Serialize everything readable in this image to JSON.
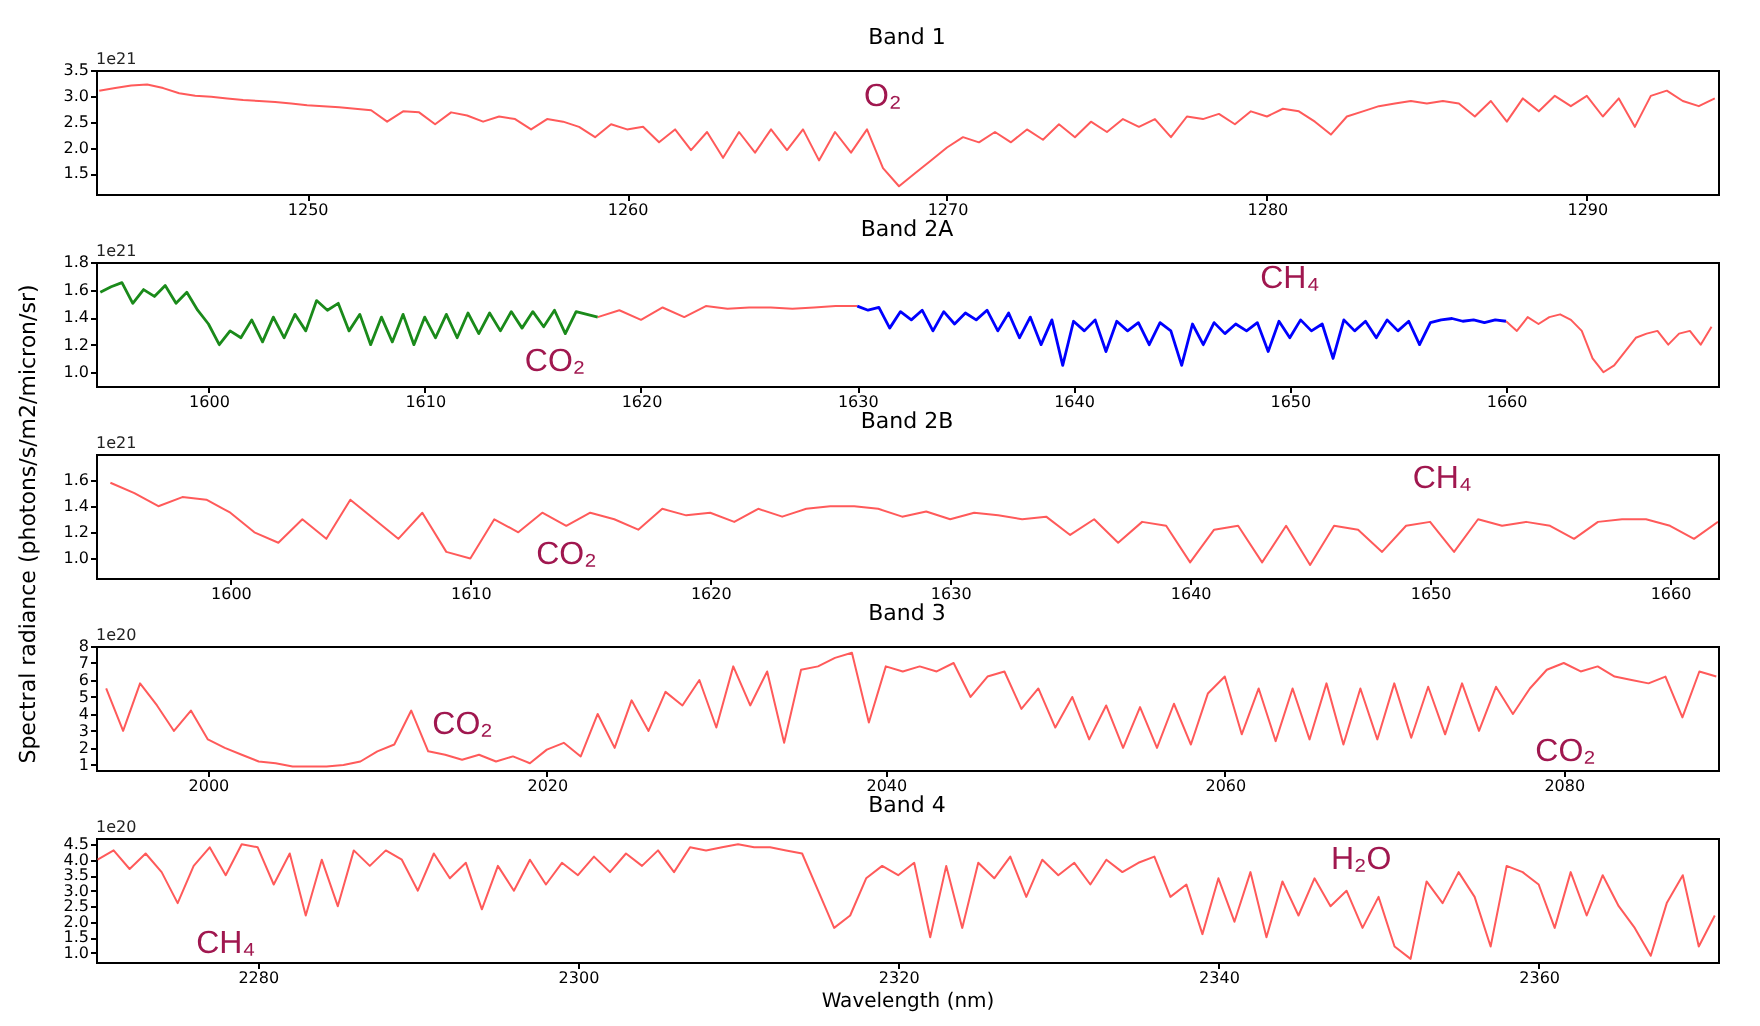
{
  "chart_data": [
    {
      "type": "line",
      "title": "Band 1",
      "xlim": [
        1243.4,
        1294.1
      ],
      "xticks": [
        1250,
        1260,
        1270,
        1280,
        1290
      ],
      "ylim": [
        1.1,
        3.5
      ],
      "yticks": [
        1.5,
        {
          "value": 2,
          "label": "2.0"
        },
        2.5,
        {
          "value": 3,
          "label": "3.0"
        },
        3.5
      ],
      "annotations": [
        "1e21",
        "O₂"
      ],
      "series": [
        {
          "color": "#ff5a5a",
          "x": [
            1243.5,
            1244,
            1244.5,
            1245,
            1245.5,
            1246,
            1246.5,
            1247,
            1247.5,
            1248,
            1248.5,
            1249,
            1249.5,
            1250,
            1250.5,
            1251,
            1251.5,
            1252,
            1252.5,
            1253,
            1253.5,
            1254,
            1254.5,
            1255,
            1255.5,
            1256,
            1256.5,
            1257,
            1257.5,
            1258,
            1258.5,
            1259,
            1259.5,
            1260,
            1260.5,
            1261,
            1261.5,
            1262,
            1262.5,
            1263,
            1263.5,
            1264,
            1264.5,
            1265,
            1265.5,
            1266,
            1266.5,
            1267,
            1267.5,
            1268,
            1268.5,
            1269,
            1269.5,
            1270,
            1270.5,
            1271,
            1271.5,
            1272,
            1272.5,
            1273,
            1273.5,
            1274,
            1274.5,
            1275,
            1275.5,
            1276,
            1276.5,
            1277,
            1277.5,
            1278,
            1278.5,
            1279,
            1279.5,
            1280,
            1280.5,
            1281,
            1281.5,
            1282,
            1282.5,
            1283,
            1283.5,
            1284,
            1284.5,
            1285,
            1285.5,
            1286,
            1286.5,
            1287,
            1287.5,
            1288,
            1288.5,
            1289,
            1289.5,
            1290,
            1290.5,
            1291,
            1291.5,
            1292,
            1292.5,
            1293,
            1293.5,
            1294
          ],
          "values": [
            3.1,
            3.15,
            3.2,
            3.22,
            3.15,
            3.05,
            3.0,
            2.98,
            2.95,
            2.92,
            2.9,
            2.88,
            2.85,
            2.82,
            2.8,
            2.78,
            2.75,
            2.72,
            2.5,
            2.7,
            2.68,
            2.45,
            2.68,
            2.62,
            2.5,
            2.6,
            2.55,
            2.35,
            2.55,
            2.5,
            2.4,
            2.2,
            2.45,
            2.35,
            2.4,
            2.1,
            2.35,
            1.95,
            2.3,
            1.8,
            2.3,
            1.9,
            2.35,
            1.95,
            2.35,
            1.75,
            2.3,
            1.9,
            2.35,
            1.6,
            1.25,
            1.5,
            1.75,
            2.0,
            2.2,
            2.1,
            2.3,
            2.1,
            2.35,
            2.15,
            2.45,
            2.2,
            2.5,
            2.3,
            2.55,
            2.4,
            2.55,
            2.2,
            2.6,
            2.55,
            2.65,
            2.45,
            2.7,
            2.6,
            2.75,
            2.7,
            2.5,
            2.25,
            2.6,
            2.7,
            2.8,
            2.85,
            2.9,
            2.85,
            2.9,
            2.85,
            2.6,
            2.9,
            2.5,
            2.95,
            2.7,
            3.0,
            2.8,
            3.0,
            2.6,
            2.95,
            2.4,
            3.0,
            3.1,
            2.9,
            2.8,
            2.95
          ]
        }
      ]
    },
    {
      "type": "line",
      "title": "Band 2A",
      "xlim": [
        1594.8,
        1669.8
      ],
      "xticks": [
        1600,
        1610,
        1620,
        1630,
        1640,
        1650,
        1660
      ],
      "ylim": [
        0.9,
        1.8
      ],
      "yticks": [
        {
          "value": 1,
          "label": "1.0"
        },
        1.2,
        1.4,
        1.6,
        1.8
      ],
      "annotations": [
        "1e21",
        "CO₂",
        "CH₄"
      ],
      "series": [
        {
          "color": "#1a8a1a",
          "x": [
            1595,
            1595.5,
            1596,
            1596.5,
            1597,
            1597.5,
            1598,
            1598.5,
            1599,
            1599.5,
            1600,
            1600.5,
            1601,
            1601.5,
            1602,
            1602.5,
            1603,
            1603.5,
            1604,
            1604.5,
            1605,
            1605.5,
            1606,
            1606.5,
            1607,
            1607.5,
            1608,
            1608.5,
            1609,
            1609.5,
            1610,
            1610.5,
            1611,
            1611.5,
            1612,
            1612.5,
            1613,
            1613.5,
            1614,
            1614.5,
            1615,
            1615.5,
            1616,
            1616.5,
            1617,
            1617.5,
            1618
          ],
          "values": [
            1.58,
            1.62,
            1.65,
            1.5,
            1.6,
            1.55,
            1.63,
            1.5,
            1.58,
            1.45,
            1.35,
            1.2,
            1.3,
            1.25,
            1.38,
            1.22,
            1.4,
            1.25,
            1.42,
            1.3,
            1.52,
            1.45,
            1.5,
            1.3,
            1.42,
            1.2,
            1.4,
            1.22,
            1.42,
            1.2,
            1.4,
            1.25,
            1.42,
            1.25,
            1.43,
            1.28,
            1.43,
            1.3,
            1.44,
            1.32,
            1.44,
            1.33,
            1.45,
            1.28,
            1.44,
            1.42,
            1.4
          ]
        },
        {
          "color": "#ff5a5a",
          "x": [
            1618,
            1619,
            1620,
            1621,
            1622,
            1623,
            1624,
            1625,
            1626,
            1627,
            1628,
            1629,
            1630
          ],
          "values": [
            1.4,
            1.45,
            1.38,
            1.47,
            1.4,
            1.48,
            1.46,
            1.47,
            1.47,
            1.46,
            1.47,
            1.48,
            1.48
          ]
        },
        {
          "color": "#0000ff",
          "x": [
            1630,
            1630.5,
            1631,
            1631.5,
            1632,
            1632.5,
            1633,
            1633.5,
            1634,
            1634.5,
            1635,
            1635.5,
            1636,
            1636.5,
            1637,
            1637.5,
            1638,
            1638.5,
            1639,
            1639.5,
            1640,
            1640.5,
            1641,
            1641.5,
            1642,
            1642.5,
            1643,
            1643.5,
            1644,
            1644.5,
            1645,
            1645.5,
            1646,
            1646.5,
            1647,
            1647.5,
            1648,
            1648.5,
            1649,
            1649.5,
            1650,
            1650.5,
            1651,
            1651.5,
            1652,
            1652.5,
            1653,
            1653.5,
            1654,
            1654.5,
            1655,
            1655.5,
            1656,
            1656.5,
            1657,
            1657.5,
            1658,
            1658.5,
            1659,
            1659.5,
            1660
          ],
          "values": [
            1.48,
            1.45,
            1.47,
            1.32,
            1.44,
            1.38,
            1.45,
            1.3,
            1.44,
            1.35,
            1.43,
            1.38,
            1.45,
            1.3,
            1.43,
            1.25,
            1.4,
            1.2,
            1.38,
            1.05,
            1.37,
            1.3,
            1.38,
            1.15,
            1.37,
            1.3,
            1.36,
            1.2,
            1.36,
            1.3,
            1.05,
            1.35,
            1.2,
            1.36,
            1.28,
            1.35,
            1.3,
            1.36,
            1.15,
            1.37,
            1.25,
            1.38,
            1.3,
            1.35,
            1.1,
            1.38,
            1.3,
            1.37,
            1.25,
            1.38,
            1.3,
            1.37,
            1.2,
            1.36,
            1.38,
            1.39,
            1.37,
            1.38,
            1.36,
            1.38,
            1.37
          ]
        },
        {
          "color": "#ff5a5a",
          "x": [
            1660,
            1660.5,
            1661,
            1661.5,
            1662,
            1662.5,
            1663,
            1663.5,
            1664,
            1664.5,
            1665,
            1665.5,
            1666,
            1666.5,
            1667,
            1667.5,
            1668,
            1668.5,
            1669,
            1669.5
          ],
          "values": [
            1.37,
            1.3,
            1.4,
            1.35,
            1.4,
            1.42,
            1.38,
            1.3,
            1.1,
            1.0,
            1.05,
            1.15,
            1.25,
            1.28,
            1.3,
            1.2,
            1.28,
            1.3,
            1.2,
            1.33
          ]
        }
      ]
    },
    {
      "type": "line",
      "title": "Band 2B",
      "ylabel": "Spectral radiance (photons/s/m2/micron/sr)",
      "xlim": [
        1594.4,
        1662
      ],
      "xticks": [
        1600,
        1610,
        1620,
        1630,
        1640,
        1650,
        1660
      ],
      "ylim": [
        0.85,
        1.8
      ],
      "yticks": [
        {
          "value": 1,
          "label": "1.0"
        },
        1.2,
        1.4,
        1.6
      ],
      "annotations": [
        "1e21",
        "CO₂",
        "CH₄"
      ],
      "series": [
        {
          "color": "#ff5a5a",
          "x": [
            1595,
            1596,
            1597,
            1598,
            1599,
            1600,
            1601,
            1602,
            1603,
            1604,
            1605,
            1606,
            1607,
            1608,
            1609,
            1610,
            1611,
            1612,
            1613,
            1614,
            1615,
            1616,
            1617,
            1618,
            1619,
            1620,
            1621,
            1622,
            1623,
            1624,
            1625,
            1626,
            1627,
            1628,
            1629,
            1630,
            1631,
            1632,
            1633,
            1634,
            1635,
            1636,
            1637,
            1638,
            1639,
            1640,
            1641,
            1642,
            1643,
            1644,
            1645,
            1646,
            1647,
            1648,
            1649,
            1650,
            1651,
            1652,
            1653,
            1654,
            1655,
            1656,
            1657,
            1658,
            1659,
            1660,
            1661,
            1662
          ],
          "values": [
            1.58,
            1.5,
            1.4,
            1.47,
            1.45,
            1.35,
            1.2,
            1.12,
            1.3,
            1.15,
            1.45,
            1.3,
            1.15,
            1.35,
            1.05,
            1.0,
            1.3,
            1.2,
            1.35,
            1.25,
            1.35,
            1.3,
            1.22,
            1.38,
            1.33,
            1.35,
            1.28,
            1.38,
            1.32,
            1.38,
            1.4,
            1.4,
            1.38,
            1.32,
            1.36,
            1.3,
            1.35,
            1.33,
            1.3,
            1.32,
            1.18,
            1.3,
            1.12,
            1.28,
            1.25,
            0.97,
            1.22,
            1.25,
            0.97,
            1.25,
            0.95,
            1.25,
            1.22,
            1.05,
            1.25,
            1.28,
            1.05,
            1.3,
            1.25,
            1.28,
            1.25,
            1.15,
            1.28,
            1.3,
            1.3,
            1.25,
            1.15,
            1.28
          ]
        }
      ]
    },
    {
      "type": "line",
      "title": "Band 3",
      "xlim": [
        1993.4,
        2089.1
      ],
      "xticks": [
        2000,
        2020,
        2040,
        2060,
        2080
      ],
      "ylim": [
        0.7,
        8
      ],
      "yticks": [
        1,
        2,
        3,
        4,
        5,
        6,
        7,
        8
      ],
      "annotations": [
        "1e20",
        "CO₂",
        "CO₂"
      ],
      "series": [
        {
          "color": "#ff5a5a",
          "x": [
            1994,
            1995,
            1996,
            1997,
            1998,
            1999,
            2000,
            2001,
            2002,
            2003,
            2004,
            2005,
            2006,
            2007,
            2008,
            2009,
            2010,
            2011,
            2012,
            2013,
            2014,
            2015,
            2016,
            2017,
            2018,
            2019,
            2020,
            2021,
            2022,
            2023,
            2024,
            2025,
            2026,
            2027,
            2028,
            2029,
            2030,
            2031,
            2032,
            2033,
            2034,
            2035,
            2036,
            2037,
            2038,
            2039,
            2040,
            2041,
            2042,
            2043,
            2044,
            2045,
            2046,
            2047,
            2048,
            2049,
            2050,
            2051,
            2052,
            2053,
            2054,
            2055,
            2056,
            2057,
            2058,
            2059,
            2060,
            2061,
            2062,
            2063,
            2064,
            2065,
            2066,
            2067,
            2068,
            2069,
            2070,
            2071,
            2072,
            2073,
            2074,
            2075,
            2076,
            2077,
            2078,
            2079,
            2080,
            2081,
            2082,
            2083,
            2084,
            2085,
            2086,
            2087,
            2088,
            2089
          ],
          "values": [
            5.5,
            3.0,
            5.8,
            4.5,
            3.0,
            4.2,
            2.5,
            2.0,
            1.6,
            1.2,
            1.1,
            0.9,
            0.9,
            0.9,
            1.0,
            1.2,
            1.8,
            2.2,
            4.2,
            1.8,
            1.6,
            1.3,
            1.6,
            1.2,
            1.5,
            1.1,
            1.9,
            2.3,
            1.5,
            4.0,
            2.0,
            4.8,
            3.0,
            5.3,
            4.5,
            6.0,
            3.2,
            6.8,
            4.5,
            6.5,
            2.3,
            6.6,
            6.8,
            7.3,
            7.6,
            3.5,
            6.8,
            6.5,
            6.8,
            6.5,
            7.0,
            5.0,
            6.2,
            6.5,
            4.3,
            5.5,
            3.2,
            5.0,
            2.5,
            4.5,
            2.0,
            4.4,
            2.0,
            4.6,
            2.2,
            5.2,
            6.2,
            2.8,
            5.5,
            2.4,
            5.5,
            2.5,
            5.8,
            2.2,
            5.5,
            2.5,
            5.8,
            2.6,
            5.6,
            2.8,
            5.8,
            3.0,
            5.6,
            4.0,
            5.5,
            6.6,
            7.0,
            6.5,
            6.8,
            6.2,
            6.0,
            5.8,
            6.2,
            3.8,
            6.5,
            6.2
          ]
        }
      ]
    },
    {
      "type": "line",
      "title": "Band 4",
      "xlabel": "Wavelength (nm)",
      "xlim": [
        2269.9,
        2371.2
      ],
      "xticks": [
        2280,
        2300,
        2320,
        2340,
        2360
      ],
      "ylim": [
        0.7,
        4.7
      ],
      "yticks": [
        {
          "value": 1,
          "label": "1.0"
        },
        1.5,
        {
          "value": 2,
          "label": "2.0"
        },
        2.5,
        {
          "value": 3,
          "label": "3.0"
        },
        3.5,
        {
          "value": 4,
          "label": "4.0"
        },
        4.5
      ],
      "annotations": [
        "1e20",
        "CH₄",
        "H₂O"
      ],
      "series": [
        {
          "color": "#ff5a5a",
          "x": [
            2270,
            2271,
            2272,
            2273,
            2274,
            2275,
            2276,
            2277,
            2278,
            2279,
            2280,
            2281,
            2282,
            2283,
            2284,
            2285,
            2286,
            2287,
            2288,
            2289,
            2290,
            2291,
            2292,
            2293,
            2294,
            2295,
            2296,
            2297,
            2298,
            2299,
            2300,
            2301,
            2302,
            2303,
            2304,
            2305,
            2306,
            2307,
            2308,
            2309,
            2310,
            2311,
            2312,
            2313,
            2314,
            2315,
            2316,
            2317,
            2318,
            2319,
            2320,
            2321,
            2322,
            2323,
            2324,
            2325,
            2326,
            2327,
            2328,
            2329,
            2330,
            2331,
            2332,
            2333,
            2334,
            2335,
            2336,
            2337,
            2338,
            2339,
            2340,
            2341,
            2342,
            2343,
            2344,
            2345,
            2346,
            2347,
            2348,
            2349,
            2350,
            2351,
            2352,
            2353,
            2354,
            2355,
            2356,
            2357,
            2358,
            2359,
            2360,
            2361,
            2362,
            2363,
            2364,
            2365,
            2366,
            2367,
            2368,
            2369,
            2370,
            2371
          ],
          "values": [
            4.0,
            4.3,
            3.7,
            4.2,
            3.6,
            2.6,
            3.8,
            4.4,
            3.5,
            4.5,
            4.4,
            3.2,
            4.2,
            2.2,
            4.0,
            2.5,
            4.3,
            3.8,
            4.3,
            4.0,
            3.0,
            4.2,
            3.4,
            3.9,
            2.4,
            3.8,
            3.0,
            4.0,
            3.2,
            3.9,
            3.5,
            4.1,
            3.6,
            4.2,
            3.8,
            4.3,
            3.6,
            4.4,
            4.3,
            4.4,
            4.5,
            4.4,
            4.4,
            4.3,
            4.2,
            3.0,
            1.8,
            2.2,
            3.4,
            3.8,
            3.5,
            3.9,
            1.5,
            3.8,
            1.8,
            3.9,
            3.4,
            4.1,
            2.8,
            4.0,
            3.5,
            3.9,
            3.2,
            4.0,
            3.6,
            3.9,
            4.1,
            2.8,
            3.2,
            1.6,
            3.4,
            2.0,
            3.6,
            1.5,
            3.3,
            2.2,
            3.4,
            2.5,
            3.0,
            1.8,
            2.8,
            1.2,
            0.8,
            3.3,
            2.6,
            3.6,
            2.8,
            1.2,
            3.8,
            3.6,
            3.2,
            1.8,
            3.6,
            2.2,
            3.5,
            2.5,
            1.8,
            0.9,
            2.6,
            3.5,
            1.2,
            2.2
          ]
        }
      ]
    }
  ]
}
